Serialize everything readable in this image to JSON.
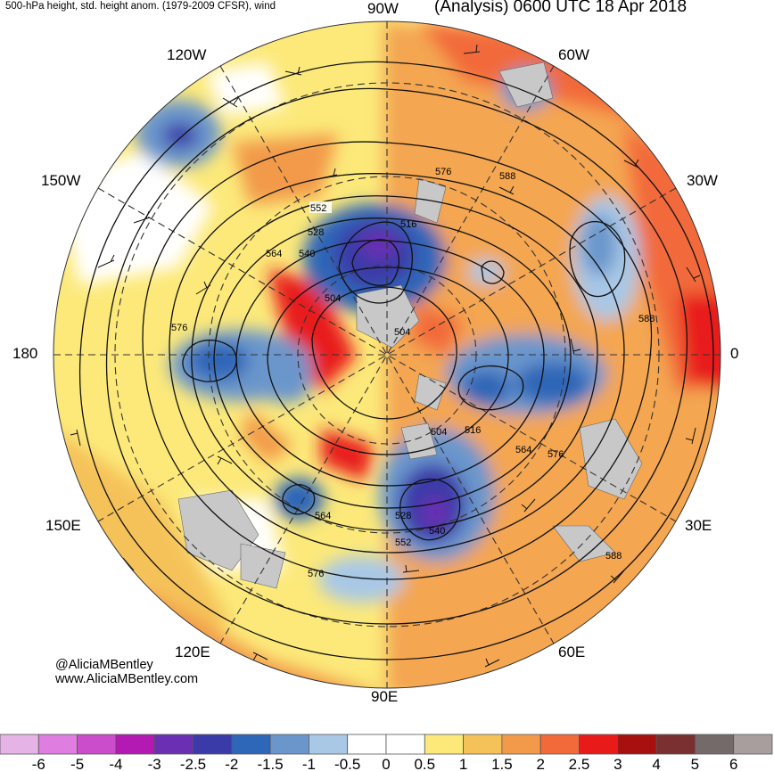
{
  "header": {
    "left_title": "500-hPa height, std. height anom. (1979-2009 CFSR), wind",
    "right_title": "(Analysis) 0600 UTC 18 Apr 2018"
  },
  "map": {
    "projection": "north-polar-stereographic",
    "longitude_labels": {
      "top": "90W",
      "upper_right": "60W",
      "right_upper": "30W",
      "right": "0",
      "right_lower": "30E",
      "lower_right": "60E",
      "bottom": "90E",
      "lower_left": "120E",
      "left_lower": "150E",
      "left": "180",
      "left_upper": "150W",
      "upper_left": "120W"
    },
    "contour_labels": [
      "552",
      "528",
      "516",
      "564",
      "540",
      "504",
      "576",
      "588",
      "576",
      "588",
      "504",
      "504",
      "516",
      "564",
      "576",
      "528",
      "540",
      "552",
      "564",
      "576",
      "588"
    ],
    "colors": {
      "land": "#c8c8c8",
      "neutral": "#ffffff"
    }
  },
  "credit": {
    "handle": "@AliciaMBentley",
    "website": "www.AliciaMBentley.com"
  },
  "colorbar": {
    "colors": [
      "#e6b3e6",
      "#e07de0",
      "#cc4dcc",
      "#b31ab3",
      "#6b2fb3",
      "#3a3aa8",
      "#2e66b8",
      "#6b96cc",
      "#a8c8e6",
      "#ffffff",
      "#ffffff",
      "#fce97a",
      "#f5c25a",
      "#f29a4a",
      "#f26a3a",
      "#e81a1a",
      "#a80f0f",
      "#7a3030",
      "#756a6a",
      "#a89e9e"
    ],
    "ticks": [
      "-6",
      "-5",
      "-4",
      "-3",
      "-2.5",
      "-2",
      "-1.5",
      "-1",
      "-0.5",
      "0",
      "0.5",
      "1",
      "1.5",
      "2",
      "2.5",
      "3",
      "4",
      "5",
      "6"
    ]
  }
}
